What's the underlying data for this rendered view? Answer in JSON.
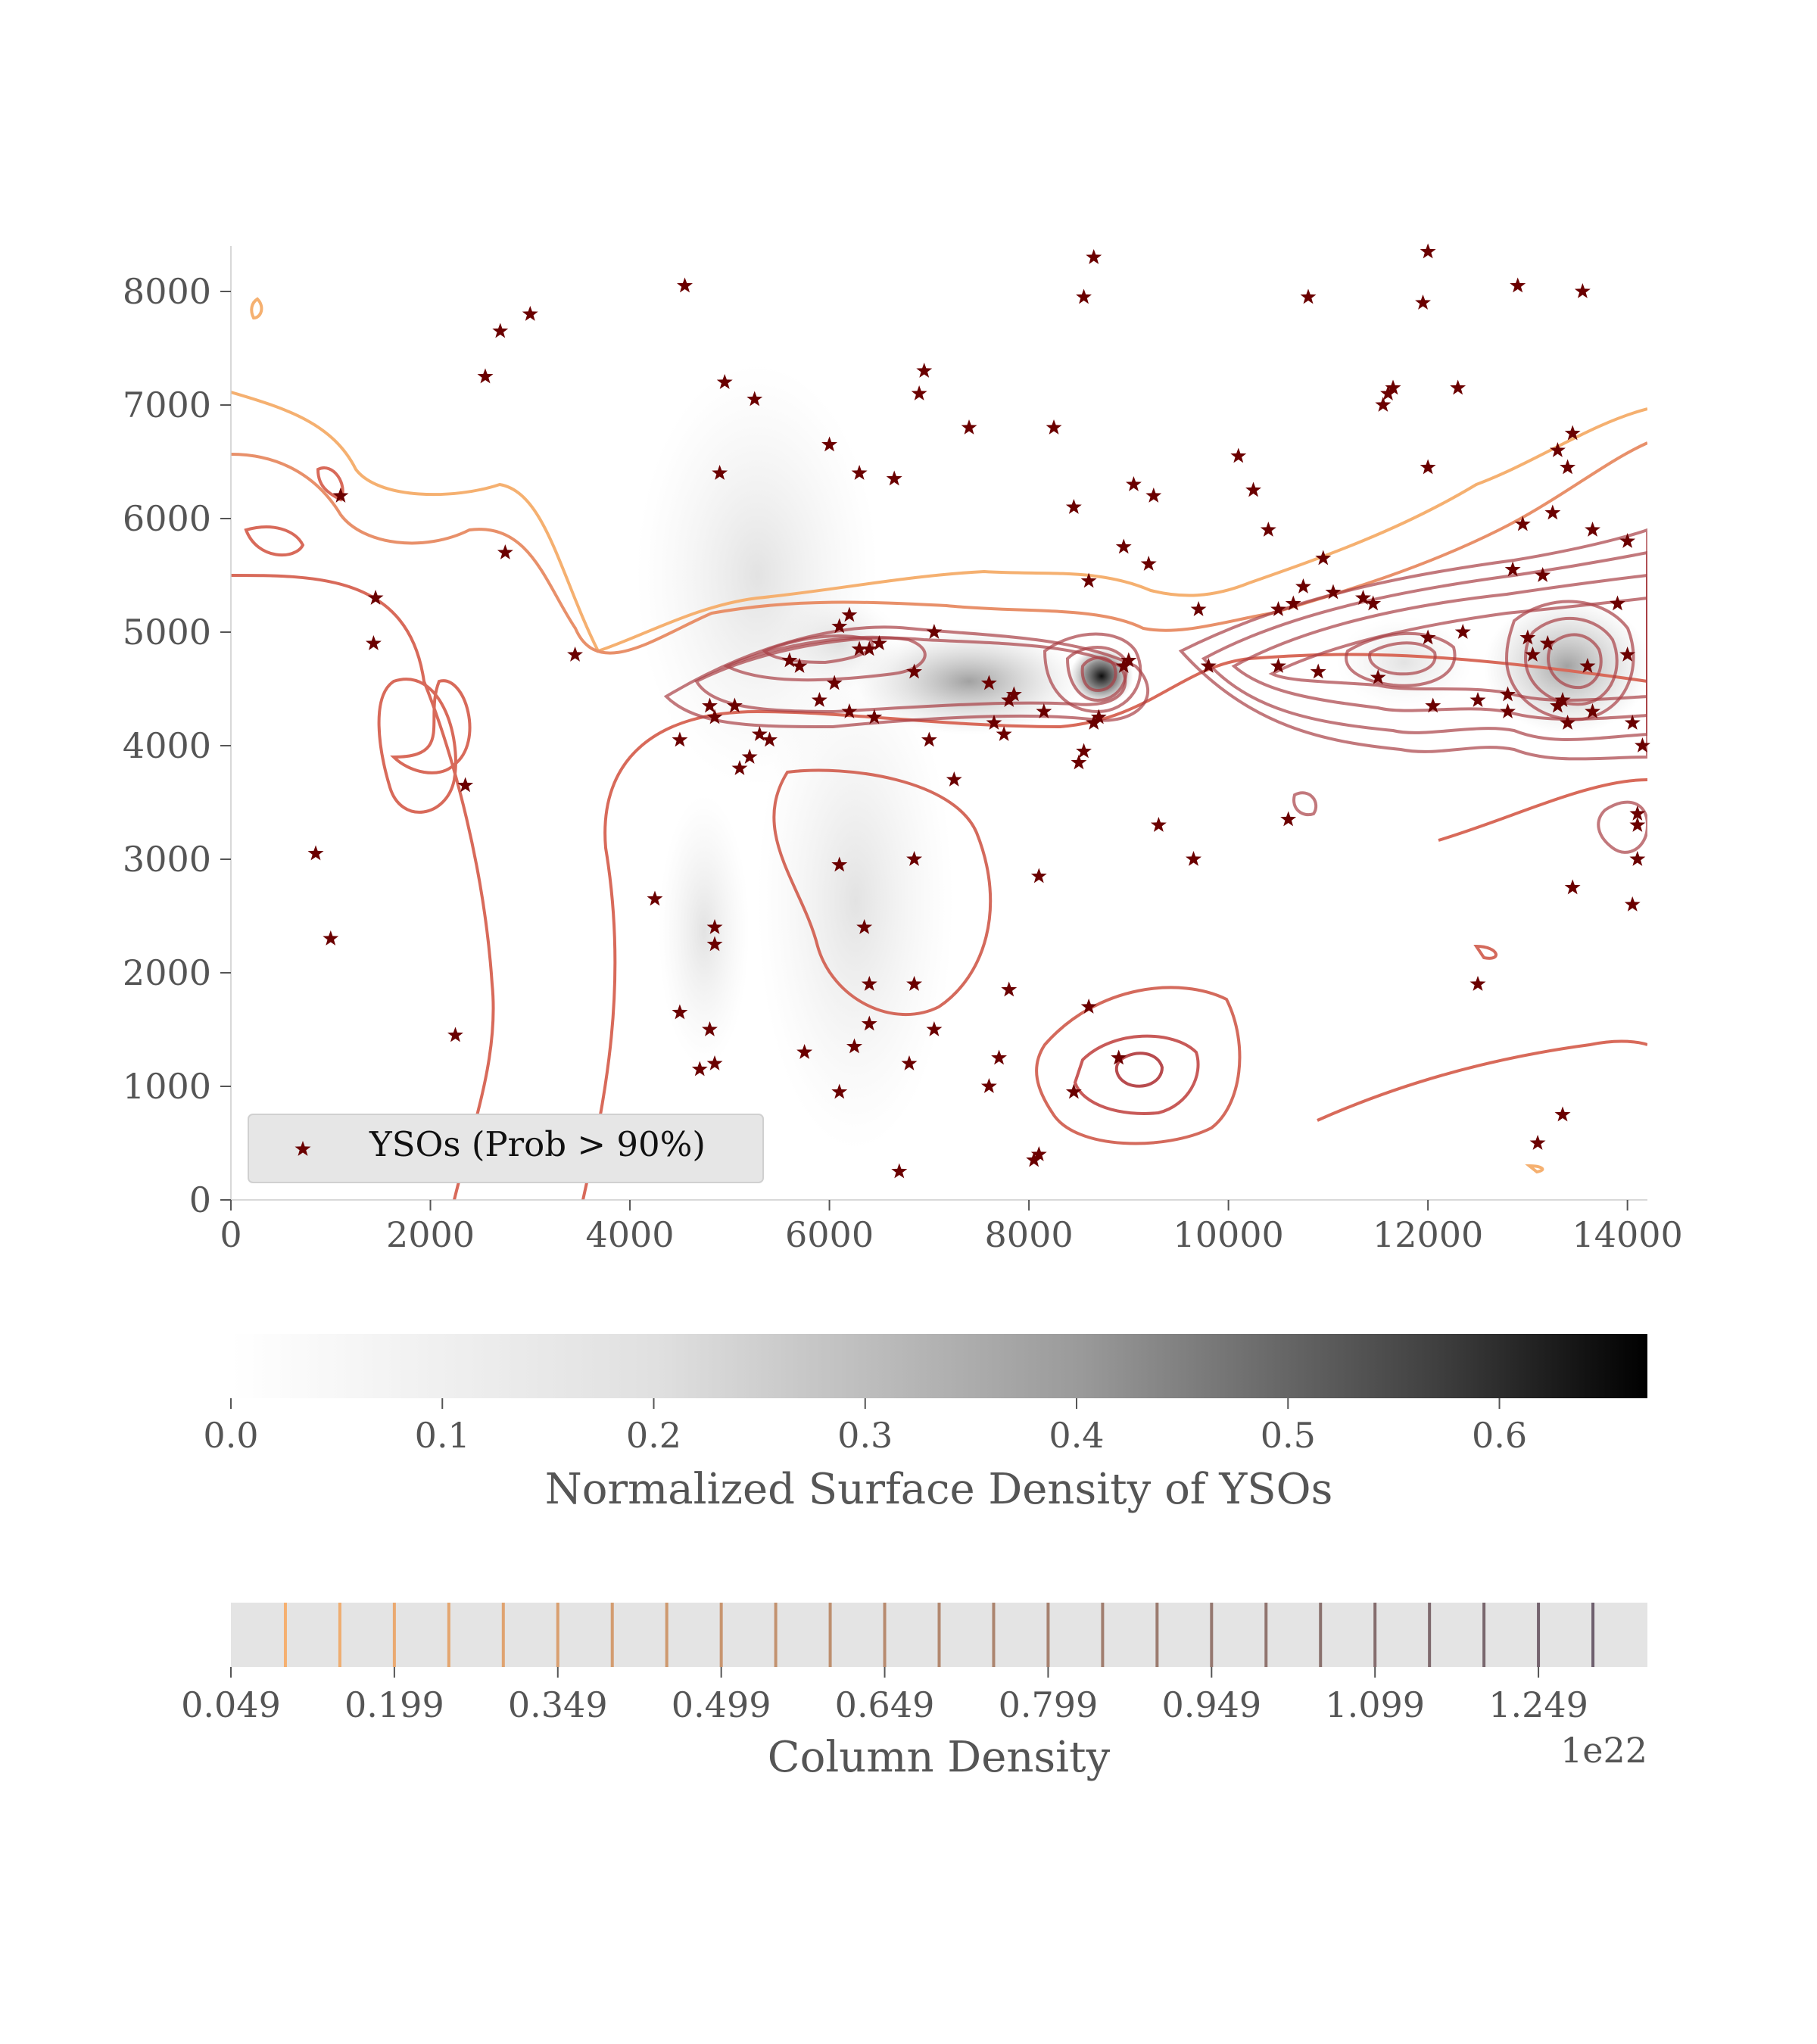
{
  "chart_data": [
    {
      "type": "scatter",
      "xlim": [
        0,
        14200
      ],
      "ylim": [
        0,
        8400
      ],
      "x_ticks": [
        0,
        2000,
        4000,
        6000,
        8000,
        10000,
        12000,
        14000
      ],
      "y_ticks": [
        0,
        1000,
        2000,
        3000,
        4000,
        5000,
        6000,
        7000,
        8000
      ],
      "x_tick_labels": [
        "0",
        "2000",
        "4000",
        "6000",
        "8000",
        "10000",
        "12000",
        "14000"
      ],
      "y_tick_labels": [
        "0",
        "1000",
        "2000",
        "3000",
        "4000",
        "5000",
        "6000",
        "7000",
        "8000"
      ],
      "legend": {
        "label": "YSOs (Prob > 90%)",
        "placement": "lower-left"
      },
      "colors": {
        "marker": "#6b0000",
        "contour_low": "#f5b070",
        "contour_mid": "#d86a5a",
        "contour_high": "#8c2b2b"
      },
      "background": "grayscale 2D histogram of normalized YSO surface density, peak near (8700, 4600) and (13500, 4900)",
      "series": [
        {
          "name": "YSOs (Prob > 90%)",
          "marker": "star",
          "points": [
            [
              1100,
              6200
            ],
            [
              1450,
              5300
            ],
            [
              1430,
              4900
            ],
            [
              2350,
              3650
            ],
            [
              2750,
              5700
            ],
            [
              2550,
              7250
            ],
            [
              2700,
              7650
            ],
            [
              3000,
              7800
            ],
            [
              850,
              3050
            ],
            [
              1000,
              2300
            ],
            [
              2250,
              1450
            ],
            [
              3450,
              4800
            ],
            [
              4550,
              8050
            ],
            [
              4950,
              7200
            ],
            [
              4900,
              6400
            ],
            [
              5250,
              7050
            ],
            [
              4500,
              4050
            ],
            [
              4800,
              4350
            ],
            [
              4850,
              4250
            ],
            [
              5050,
              4350
            ],
            [
              5100,
              3800
            ],
            [
              5200,
              3900
            ],
            [
              5300,
              4100
            ],
            [
              5400,
              4050
            ],
            [
              4250,
              2650
            ],
            [
              4500,
              1650
            ],
            [
              4700,
              1150
            ],
            [
              4850,
              1200
            ],
            [
              4800,
              1500
            ],
            [
              4850,
              2400
            ],
            [
              4850,
              2250
            ],
            [
              5600,
              4750
            ],
            [
              5700,
              4700
            ],
            [
              5900,
              4400
            ],
            [
              6050,
              4550
            ],
            [
              6100,
              5050
            ],
            [
              6200,
              5150
            ],
            [
              6300,
              4850
            ],
            [
              6400,
              4850
            ],
            [
              6500,
              4900
            ],
            [
              6450,
              4250
            ],
            [
              6200,
              4300
            ],
            [
              6100,
              2950
            ],
            [
              6350,
              2400
            ],
            [
              6400,
              1900
            ],
            [
              6400,
              1550
            ],
            [
              6250,
              1350
            ],
            [
              6100,
              950
            ],
            [
              5750,
              1300
            ],
            [
              6000,
              6650
            ],
            [
              6300,
              6400
            ],
            [
              6650,
              6350
            ],
            [
              6900,
              7100
            ],
            [
              6950,
              7300
            ],
            [
              7050,
              5000
            ],
            [
              7250,
              3700
            ],
            [
              7000,
              4050
            ],
            [
              6850,
              4650
            ],
            [
              6850,
              3000
            ],
            [
              6850,
              1900
            ],
            [
              6800,
              1200
            ],
            [
              7050,
              1500
            ],
            [
              6700,
              250
            ],
            [
              7400,
              6800
            ],
            [
              7600,
              4550
            ],
            [
              7650,
              4200
            ],
            [
              7800,
              4400
            ],
            [
              7850,
              4450
            ],
            [
              7750,
              4100
            ],
            [
              7700,
              1250
            ],
            [
              7600,
              1000
            ],
            [
              7800,
              1850
            ],
            [
              8150,
              4300
            ],
            [
              8100,
              2850
            ],
            [
              8050,
              350
            ],
            [
              8100,
              400
            ],
            [
              8250,
              6800
            ],
            [
              8450,
              6100
            ],
            [
              8500,
              3850
            ],
            [
              8550,
              3950
            ],
            [
              8600,
              5450
            ],
            [
              8550,
              7950
            ],
            [
              8650,
              8300
            ],
            [
              8600,
              1700
            ],
            [
              8650,
              4200
            ],
            [
              8700,
              4250
            ],
            [
              8450,
              950
            ],
            [
              8900,
              1250
            ],
            [
              8950,
              4700
            ],
            [
              9000,
              4750
            ],
            [
              8950,
              5750
            ],
            [
              9050,
              6300
            ],
            [
              9200,
              5600
            ],
            [
              9250,
              6200
            ],
            [
              9300,
              3300
            ],
            [
              9650,
              3000
            ],
            [
              9700,
              5200
            ],
            [
              9800,
              4700
            ],
            [
              10100,
              6550
            ],
            [
              10250,
              6250
            ],
            [
              10400,
              5900
            ],
            [
              10500,
              4700
            ],
            [
              10500,
              5200
            ],
            [
              10600,
              3350
            ],
            [
              10650,
              5250
            ],
            [
              10750,
              5400
            ],
            [
              10800,
              7950
            ],
            [
              10900,
              4650
            ],
            [
              10950,
              5650
            ],
            [
              11050,
              5350
            ],
            [
              11350,
              5300
            ],
            [
              11450,
              5250
            ],
            [
              11500,
              4600
            ],
            [
              11550,
              7000
            ],
            [
              11600,
              7100
            ],
            [
              11650,
              7150
            ],
            [
              11950,
              7900
            ],
            [
              12000,
              8350
            ],
            [
              12000,
              4950
            ],
            [
              12050,
              4350
            ],
            [
              12000,
              6450
            ],
            [
              12300,
              7150
            ],
            [
              12350,
              5000
            ],
            [
              12500,
              4400
            ],
            [
              12500,
              1900
            ],
            [
              12800,
              4300
            ],
            [
              12800,
              4450
            ],
            [
              12850,
              5550
            ],
            [
              12900,
              8050
            ],
            [
              12950,
              5950
            ],
            [
              13000,
              4950
            ],
            [
              13050,
              4800
            ],
            [
              13100,
              500
            ],
            [
              13150,
              5500
            ],
            [
              13200,
              4900
            ],
            [
              13250,
              6050
            ],
            [
              13300,
              6600
            ],
            [
              13300,
              4350
            ],
            [
              13350,
              4400
            ],
            [
              13400,
              4200
            ],
            [
              13400,
              6450
            ],
            [
              13450,
              6750
            ],
            [
              13350,
              750
            ],
            [
              13450,
              2750
            ],
            [
              13550,
              8000
            ],
            [
              13600,
              4700
            ],
            [
              13650,
              4300
            ],
            [
              13650,
              5900
            ],
            [
              13900,
              5250
            ],
            [
              14000,
              5800
            ],
            [
              14000,
              4800
            ],
            [
              14050,
              4200
            ],
            [
              14100,
              3400
            ],
            [
              14100,
              3300
            ],
            [
              14100,
              3000
            ],
            [
              14050,
              2600
            ],
            [
              14150,
              4000
            ]
          ]
        }
      ]
    },
    {
      "type": "heatmap",
      "colormap": "grayscale",
      "xlim": [
        0,
        0.67
      ],
      "ticks": [
        0,
        0.1,
        0.2,
        0.3,
        0.4,
        0.5,
        0.6
      ],
      "tick_labels": [
        "0.0",
        "0.1",
        "0.2",
        "0.3",
        "0.4",
        "0.5",
        "0.6"
      ],
      "xlabel": "Normalized Surface Density of YSOs"
    },
    {
      "type": "heatmap",
      "colormap": "contour levels",
      "xlim": [
        0.049,
        1.349
      ],
      "levels": [
        0.099,
        0.149,
        0.199,
        0.249,
        0.299,
        0.349,
        0.399,
        0.449,
        0.499,
        0.549,
        0.599,
        0.649,
        0.699,
        0.749,
        0.799,
        0.849,
        0.899,
        0.949,
        0.999,
        1.049,
        1.099,
        1.149,
        1.199,
        1.249,
        1.299
      ],
      "ticks": [
        0.049,
        0.199,
        0.349,
        0.499,
        0.649,
        0.799,
        0.949,
        1.099,
        1.249
      ],
      "tick_labels": [
        "0.049",
        "0.199",
        "0.349",
        "0.499",
        "0.649",
        "0.799",
        "0.949",
        "1.099",
        "1.249"
      ],
      "xlabel": "Column Density",
      "offset_label": "1e22"
    }
  ]
}
